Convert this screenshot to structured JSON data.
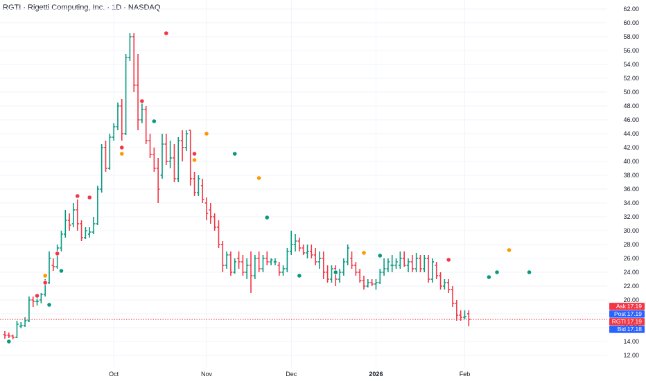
{
  "header": {
    "title": "RGTI · Rigetti Computing, Inc. · 1D · NASDAQ"
  },
  "colors": {
    "up": "#089981",
    "down": "#f23645",
    "orange": "#ff9800",
    "grid": "#f0f3fa",
    "text": "#131722",
    "bid": "#2962ff",
    "last": "#f23645"
  },
  "chart_data": {
    "type": "ohlc",
    "yaxis": {
      "ticks": [
        12,
        14,
        16,
        18,
        20,
        22,
        24,
        26,
        28,
        30,
        32,
        34,
        36,
        38,
        40,
        42,
        44,
        46,
        48,
        50,
        52,
        54,
        56,
        58,
        60,
        62
      ]
    },
    "xaxis": {
      "labels": [
        {
          "text": "Oct",
          "at": 27,
          "bold": false
        },
        {
          "text": "Nov",
          "at": 50,
          "bold": false
        },
        {
          "text": "Dec",
          "at": 71,
          "bold": false
        },
        {
          "text": "2026",
          "at": 92,
          "bold": true
        },
        {
          "text": "Feb",
          "at": 114,
          "bold": false
        }
      ]
    },
    "quotes": [
      {
        "label": "Ask",
        "value": "17.19",
        "color": "#f23645"
      },
      {
        "label": "Post",
        "value": "17.19",
        "color": "#2962ff"
      },
      {
        "label": "RGTI",
        "value": "17.19",
        "color": "#f23645"
      },
      {
        "label": "Bid",
        "value": "17.18",
        "color": "#2962ff"
      }
    ],
    "last_price": 17.19,
    "bars": [
      [
        15.0,
        15.5,
        14.4,
        14.9
      ],
      [
        14.9,
        15.3,
        14.5,
        14.8
      ],
      [
        14.8,
        15.0,
        14.3,
        14.6
      ],
      [
        14.6,
        17.0,
        14.5,
        16.5
      ],
      [
        16.2,
        16.8,
        15.9,
        16.3
      ],
      [
        16.3,
        17.5,
        16.1,
        17.0
      ],
      [
        17.0,
        20.5,
        16.8,
        20.0
      ],
      [
        20.0,
        20.5,
        19.0,
        19.8
      ],
      [
        19.8,
        20.2,
        19.2,
        19.8
      ],
      [
        20.0,
        21.0,
        19.5,
        20.8
      ],
      [
        20.8,
        23.0,
        20.5,
        22.5
      ],
      [
        22.5,
        27.0,
        22.3,
        26.0
      ],
      [
        25.0,
        26.0,
        24.2,
        24.8
      ],
      [
        24.8,
        28.0,
        24.5,
        27.5
      ],
      [
        27.5,
        30.0,
        27.0,
        29.5
      ],
      [
        29.5,
        33.0,
        29.0,
        31.5
      ],
      [
        31.5,
        32.5,
        30.0,
        30.8
      ],
      [
        31.0,
        34.0,
        30.5,
        33.0
      ],
      [
        33.0,
        34.5,
        30.0,
        31.0
      ],
      [
        31.0,
        31.5,
        28.5,
        29.0
      ],
      [
        29.0,
        30.5,
        28.8,
        30.0
      ],
      [
        29.5,
        30.5,
        29.0,
        29.8
      ],
      [
        29.8,
        32.0,
        29.5,
        31.0
      ],
      [
        31.0,
        36.5,
        30.8,
        36.0
      ],
      [
        36.0,
        42.5,
        35.5,
        42.0
      ],
      [
        42.0,
        43.0,
        38.5,
        39.0
      ],
      [
        39.0,
        44.0,
        38.8,
        43.5
      ],
      [
        43.5,
        45.5,
        43.0,
        45.0
      ],
      [
        45.0,
        48.5,
        44.5,
        48.0
      ],
      [
        48.0,
        49.0,
        43.0,
        44.0
      ],
      [
        44.0,
        55.5,
        43.8,
        55.0
      ],
      [
        55.0,
        58.5,
        54.5,
        58.0
      ],
      [
        58.0,
        58.5,
        50.0,
        51.0
      ],
      [
        51.0,
        55.5,
        44.5,
        46.0
      ],
      [
        46.0,
        48.5,
        45.5,
        47.5
      ],
      [
        47.5,
        48.0,
        42.5,
        43.0
      ],
      [
        43.0,
        44.0,
        40.5,
        41.0
      ],
      [
        41.0,
        42.0,
        38.5,
        39.0
      ],
      [
        39.0,
        40.5,
        34.0,
        36.0
      ],
      [
        38.0,
        44.0,
        37.5,
        42.5
      ],
      [
        42.5,
        44.0,
        39.5,
        40.0
      ],
      [
        40.0,
        43.0,
        39.0,
        40.5
      ],
      [
        40.5,
        42.5,
        37.0,
        37.5
      ],
      [
        37.5,
        43.5,
        37.0,
        43.0
      ],
      [
        43.0,
        44.5,
        40.0,
        42.0
      ],
      [
        42.0,
        44.5,
        41.5,
        44.0
      ],
      [
        44.5,
        44.5,
        36.5,
        37.5
      ],
      [
        37.5,
        38.5,
        35.0,
        35.5
      ],
      [
        35.5,
        38.0,
        35.0,
        37.5
      ],
      [
        36.5,
        37.5,
        34.0,
        34.5
      ],
      [
        34.0,
        34.8,
        31.5,
        32.5
      ],
      [
        33.0,
        34.0,
        31.0,
        32.0
      ],
      [
        32.0,
        32.5,
        30.0,
        30.5
      ],
      [
        30.5,
        31.5,
        27.5,
        28.0
      ],
      [
        28.0,
        28.5,
        24.0,
        25.0
      ],
      [
        25.0,
        27.0,
        24.5,
        26.5
      ],
      [
        26.5,
        27.0,
        23.5,
        24.0
      ],
      [
        24.0,
        26.0,
        23.8,
        25.5
      ],
      [
        26.0,
        27.0,
        24.5,
        25.5
      ],
      [
        25.5,
        26.5,
        23.5,
        24.0
      ],
      [
        24.0,
        26.0,
        23.0,
        25.0
      ],
      [
        25.0,
        27.0,
        21.0,
        23.5
      ],
      [
        23.5,
        26.5,
        23.0,
        26.0
      ],
      [
        26.0,
        27.0,
        24.0,
        24.5
      ],
      [
        24.5,
        26.5,
        24.0,
        26.0
      ],
      [
        26.0,
        27.0,
        25.0,
        25.5
      ],
      [
        25.5,
        26.0,
        25.0,
        25.8
      ],
      [
        25.5,
        26.0,
        25.0,
        25.5
      ],
      [
        25.0,
        25.5,
        23.5,
        24.0
      ],
      [
        24.0,
        25.0,
        23.5,
        24.5
      ],
      [
        24.5,
        27.5,
        24.0,
        27.0
      ],
      [
        27.0,
        30.0,
        26.5,
        28.0
      ],
      [
        28.0,
        29.5,
        27.0,
        28.5
      ],
      [
        28.5,
        29.0,
        27.0,
        27.5
      ],
      [
        27.5,
        28.0,
        26.5,
        26.8
      ],
      [
        26.8,
        28.0,
        26.0,
        27.0
      ],
      [
        27.0,
        28.0,
        26.0,
        26.5
      ],
      [
        26.5,
        27.5,
        25.0,
        25.5
      ],
      [
        25.5,
        27.0,
        24.5,
        26.0
      ],
      [
        26.0,
        27.0,
        23.0,
        24.0
      ],
      [
        24.0,
        25.0,
        22.5,
        23.0
      ],
      [
        23.0,
        25.0,
        22.5,
        24.5
      ],
      [
        24.5,
        25.0,
        22.0,
        23.0
      ],
      [
        23.0,
        24.5,
        22.5,
        24.0
      ],
      [
        24.0,
        26.0,
        23.5,
        25.5
      ],
      [
        25.5,
        28.0,
        25.0,
        27.5
      ],
      [
        26.0,
        27.0,
        24.5,
        25.0
      ],
      [
        25.0,
        25.5,
        23.5,
        24.0
      ],
      [
        24.0,
        24.5,
        22.5,
        22.8
      ],
      [
        22.8,
        23.5,
        21.5,
        22.0
      ],
      [
        22.0,
        23.0,
        21.8,
        22.5
      ],
      [
        22.5,
        23.0,
        22.0,
        22.3
      ],
      [
        22.3,
        23.0,
        21.5,
        22.5
      ],
      [
        22.5,
        24.5,
        22.3,
        24.0
      ],
      [
        24.0,
        26.0,
        23.5,
        24.5
      ],
      [
        24.5,
        26.0,
        24.0,
        25.5
      ],
      [
        25.0,
        26.5,
        24.0,
        25.0
      ],
      [
        25.0,
        26.0,
        24.5,
        25.5
      ],
      [
        25.0,
        27.0,
        24.5,
        26.0
      ],
      [
        26.0,
        27.0,
        24.8,
        25.0
      ],
      [
        25.0,
        26.0,
        24.0,
        25.5
      ],
      [
        25.5,
        26.5,
        24.0,
        24.5
      ],
      [
        24.5,
        26.8,
        24.0,
        26.0
      ],
      [
        26.0,
        26.5,
        24.0,
        24.5
      ],
      [
        24.5,
        26.5,
        24.0,
        26.0
      ],
      [
        26.0,
        26.5,
        22.5,
        23.0
      ],
      [
        23.0,
        26.0,
        22.5,
        25.5
      ],
      [
        25.0,
        25.5,
        23.0,
        23.5
      ],
      [
        23.5,
        24.0,
        21.5,
        22.0
      ],
      [
        22.0,
        23.0,
        21.5,
        22.5
      ],
      [
        22.5,
        23.0,
        21.0,
        21.5
      ],
      [
        21.5,
        22.0,
        19.0,
        19.5
      ],
      [
        19.5,
        20.0,
        17.0,
        17.8
      ],
      [
        17.8,
        18.5,
        17.0,
        17.5
      ],
      [
        17.5,
        18.5,
        17.2,
        17.6
      ],
      [
        18.0,
        18.5,
        16.2,
        17.19
      ]
    ],
    "markers": [
      {
        "i": 1,
        "y": 14.0,
        "color": "#089981"
      },
      {
        "i": 8,
        "y": 20.6,
        "color": "#f23645"
      },
      {
        "i": 11,
        "y": 19.3,
        "color": "#089981"
      },
      {
        "i": 10,
        "y": 23.5,
        "color": "#ff9800"
      },
      {
        "i": 10,
        "y": 22.5,
        "color": "#f23645"
      },
      {
        "i": 13,
        "y": 26.7,
        "color": "#f23645"
      },
      {
        "i": 14,
        "y": 24.2,
        "color": "#089981"
      },
      {
        "i": 18,
        "y": 35.0,
        "color": "#f23645"
      },
      {
        "i": 21,
        "y": 34.8,
        "color": "#f23645"
      },
      {
        "i": 29,
        "y": 42.0,
        "color": "#f23645"
      },
      {
        "i": 29,
        "y": 41.1,
        "color": "#ff9800"
      },
      {
        "i": 34,
        "y": 48.7,
        "color": "#f23645"
      },
      {
        "i": 37,
        "y": 45.8,
        "color": "#089981"
      },
      {
        "i": 40,
        "y": 58.5,
        "color": "#f23645"
      },
      {
        "i": 47,
        "y": 41.1,
        "color": "#f23645"
      },
      {
        "i": 47,
        "y": 40.2,
        "color": "#ff9800"
      },
      {
        "i": 50,
        "y": 44.0,
        "color": "#ff9800"
      },
      {
        "i": 57,
        "y": 41.1,
        "color": "#089981"
      },
      {
        "i": 63,
        "y": 37.6,
        "color": "#ff9800"
      },
      {
        "i": 65,
        "y": 31.9,
        "color": "#089981"
      },
      {
        "i": 73,
        "y": 23.5,
        "color": "#089981"
      },
      {
        "i": 82,
        "y": 24.0,
        "color": "#089981"
      },
      {
        "i": 89,
        "y": 26.8,
        "color": "#ff9800"
      },
      {
        "i": 93,
        "y": 26.4,
        "color": "#089981"
      },
      {
        "i": 110,
        "y": 25.8,
        "color": "#f23645"
      },
      {
        "i": 120,
        "y": 23.3,
        "color": "#089981"
      },
      {
        "i": 122,
        "y": 24.0,
        "color": "#089981"
      },
      {
        "i": 125,
        "y": 27.2,
        "color": "#ff9800"
      },
      {
        "i": 130,
        "y": 24.0,
        "color": "#089981"
      }
    ]
  }
}
